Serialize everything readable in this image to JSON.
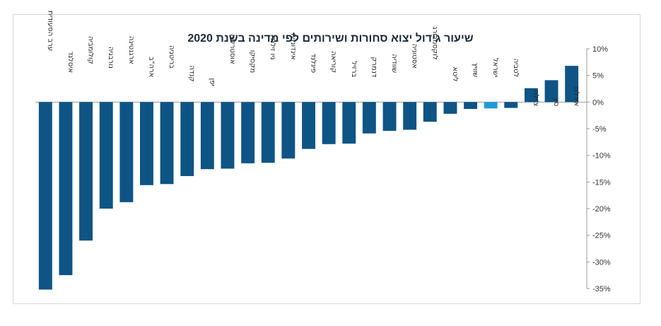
{
  "chart_data": {
    "type": "bar",
    "title": "שיעור גידול יצוא סחורות ושירותים לפי מדינה בשנת 2020",
    "xlabel": "",
    "ylabel": "",
    "ylim": [
      -35,
      10
    ],
    "y_ticks": [
      10,
      5,
      0,
      -5,
      -10,
      -15,
      -20,
      -25,
      -30,
      -35
    ],
    "y_tick_labels": [
      "10%",
      "5%",
      "0%",
      "-5%",
      "-10%",
      "-15%",
      "-20%",
      "-25%",
      "-30%",
      "-35%"
    ],
    "y_axis_position": "right",
    "grid": false,
    "legend": "none",
    "categories": [
      "ערב הסעודית",
      "איסלנד",
      "קולומביה",
      "נורבגיה",
      "ארגנטינה",
      "ארה\"ב",
      "בריטניה",
      "קנדה",
      "יפן",
      "אוסטרליה",
      "מקסיקו",
      "ניו זילנד",
      "אינדונזיה",
      "פינלנד",
      "קוריאה",
      "ברזיל",
      "דנמרק",
      "שוודיה",
      "אסטוניה",
      "לוקסמבורג",
      "ליטא",
      "שוויץ",
      "ישראל",
      "לטביה",
      "צ'ילה",
      "סין",
      "אירלנד"
    ],
    "values": [
      -35.2,
      -32.5,
      -26.0,
      -20.0,
      -18.8,
      -15.6,
      -15.4,
      -13.9,
      -12.6,
      -12.5,
      -11.5,
      -11.4,
      -10.6,
      -8.8,
      -7.9,
      -7.8,
      -5.9,
      -5.4,
      -5.2,
      -3.7,
      -2.2,
      -1.3,
      -1.2,
      -1.1,
      2.6,
      4.1,
      6.8
    ],
    "colors": {
      "bar": "#0e5485",
      "highlight": "#1f9ad9",
      "axis": "#9a9a9a",
      "text": "#222222"
    },
    "highlight_category": "ישראל"
  }
}
